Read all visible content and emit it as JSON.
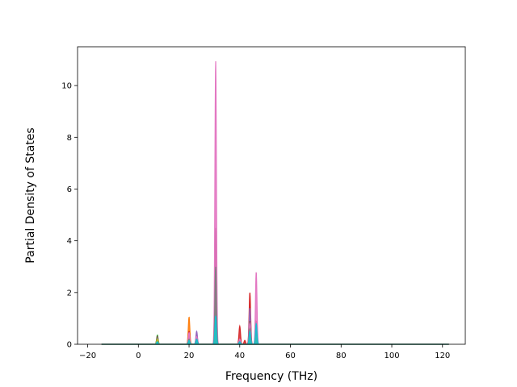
{
  "chart_data": {
    "type": "area",
    "title": "",
    "xlabel": "Frequency (THz)",
    "ylabel": "Partial Density of States",
    "xlim": [
      -24,
      129
    ],
    "ylim": [
      0,
      11.5
    ],
    "xticks": [
      -20,
      0,
      20,
      40,
      60,
      80,
      100,
      120
    ],
    "yticks": [
      0,
      2,
      4,
      6,
      8,
      10
    ],
    "grid": false,
    "legend": "none",
    "x_range": [
      -14.5,
      122.5
    ],
    "peak_width_thz": 0.3,
    "series": [
      {
        "color": "#1f77b4",
        "peaks": [
          [
            7.5,
            0.15
          ],
          [
            20,
            0.1
          ],
          [
            23,
            0.3
          ],
          [
            30.5,
            0.9
          ],
          [
            40,
            0.1
          ],
          [
            44,
            0.4
          ],
          [
            46.5,
            0.5
          ]
        ]
      },
      {
        "color": "#ff7f0e",
        "peaks": [
          [
            7.5,
            0.2
          ],
          [
            20,
            1.05
          ],
          [
            23,
            0.2
          ],
          [
            30.5,
            2.4
          ],
          [
            44,
            0.5
          ],
          [
            46.5,
            0.4
          ]
        ]
      },
      {
        "color": "#2ca02c",
        "peaks": [
          [
            7.5,
            0.35
          ],
          [
            20,
            0.3
          ],
          [
            23,
            0.15
          ],
          [
            30.5,
            1.5
          ],
          [
            40,
            0.15
          ],
          [
            44,
            0.3
          ],
          [
            46.5,
            0.5
          ]
        ]
      },
      {
        "color": "#d62728",
        "peaks": [
          [
            7.5,
            0.2
          ],
          [
            20,
            0.5
          ],
          [
            23,
            0.35
          ],
          [
            30.5,
            2.0
          ],
          [
            40,
            0.7
          ],
          [
            42,
            0.15
          ],
          [
            44,
            2.0
          ],
          [
            46.5,
            0.9
          ]
        ]
      },
      {
        "color": "#9467bd",
        "peaks": [
          [
            7.5,
            0.15
          ],
          [
            20,
            0.25
          ],
          [
            23,
            0.5
          ],
          [
            30.5,
            1.0
          ],
          [
            40,
            0.2
          ],
          [
            44,
            1.4
          ],
          [
            46.5,
            0.7
          ]
        ]
      },
      {
        "color": "#8c564b",
        "peaks": [
          [
            7.5,
            0.3
          ],
          [
            20,
            0.2
          ],
          [
            23,
            0.25
          ],
          [
            30.5,
            4.5
          ],
          [
            40,
            0.15
          ],
          [
            44,
            0.9
          ],
          [
            46.5,
            0.6
          ]
        ]
      },
      {
        "color": "#e377c2",
        "peaks": [
          [
            7.5,
            0.1
          ],
          [
            20,
            0.45
          ],
          [
            23,
            0.3
          ],
          [
            30.5,
            10.95
          ],
          [
            40,
            0.2
          ],
          [
            44,
            0.8
          ],
          [
            46.5,
            2.8
          ]
        ]
      },
      {
        "color": "#7f7f7f",
        "peaks": [
          [
            7.5,
            0.25
          ],
          [
            20,
            0.2
          ],
          [
            23,
            0.2
          ],
          [
            30.5,
            3.0
          ],
          [
            44,
            0.6
          ],
          [
            46.5,
            0.5
          ]
        ]
      },
      {
        "color": "#bcbd22",
        "peaks": [
          [
            7.5,
            0.2
          ],
          [
            20,
            0.15
          ],
          [
            23,
            0.1
          ],
          [
            30.5,
            0.6
          ],
          [
            44,
            0.3
          ],
          [
            46.5,
            0.3
          ]
        ]
      },
      {
        "color": "#17becf",
        "peaks": [
          [
            7.5,
            0.1
          ],
          [
            20,
            0.15
          ],
          [
            23,
            0.2
          ],
          [
            30.5,
            1.1
          ],
          [
            40,
            0.1
          ],
          [
            44,
            0.5
          ],
          [
            46.5,
            0.8
          ]
        ]
      }
    ]
  }
}
